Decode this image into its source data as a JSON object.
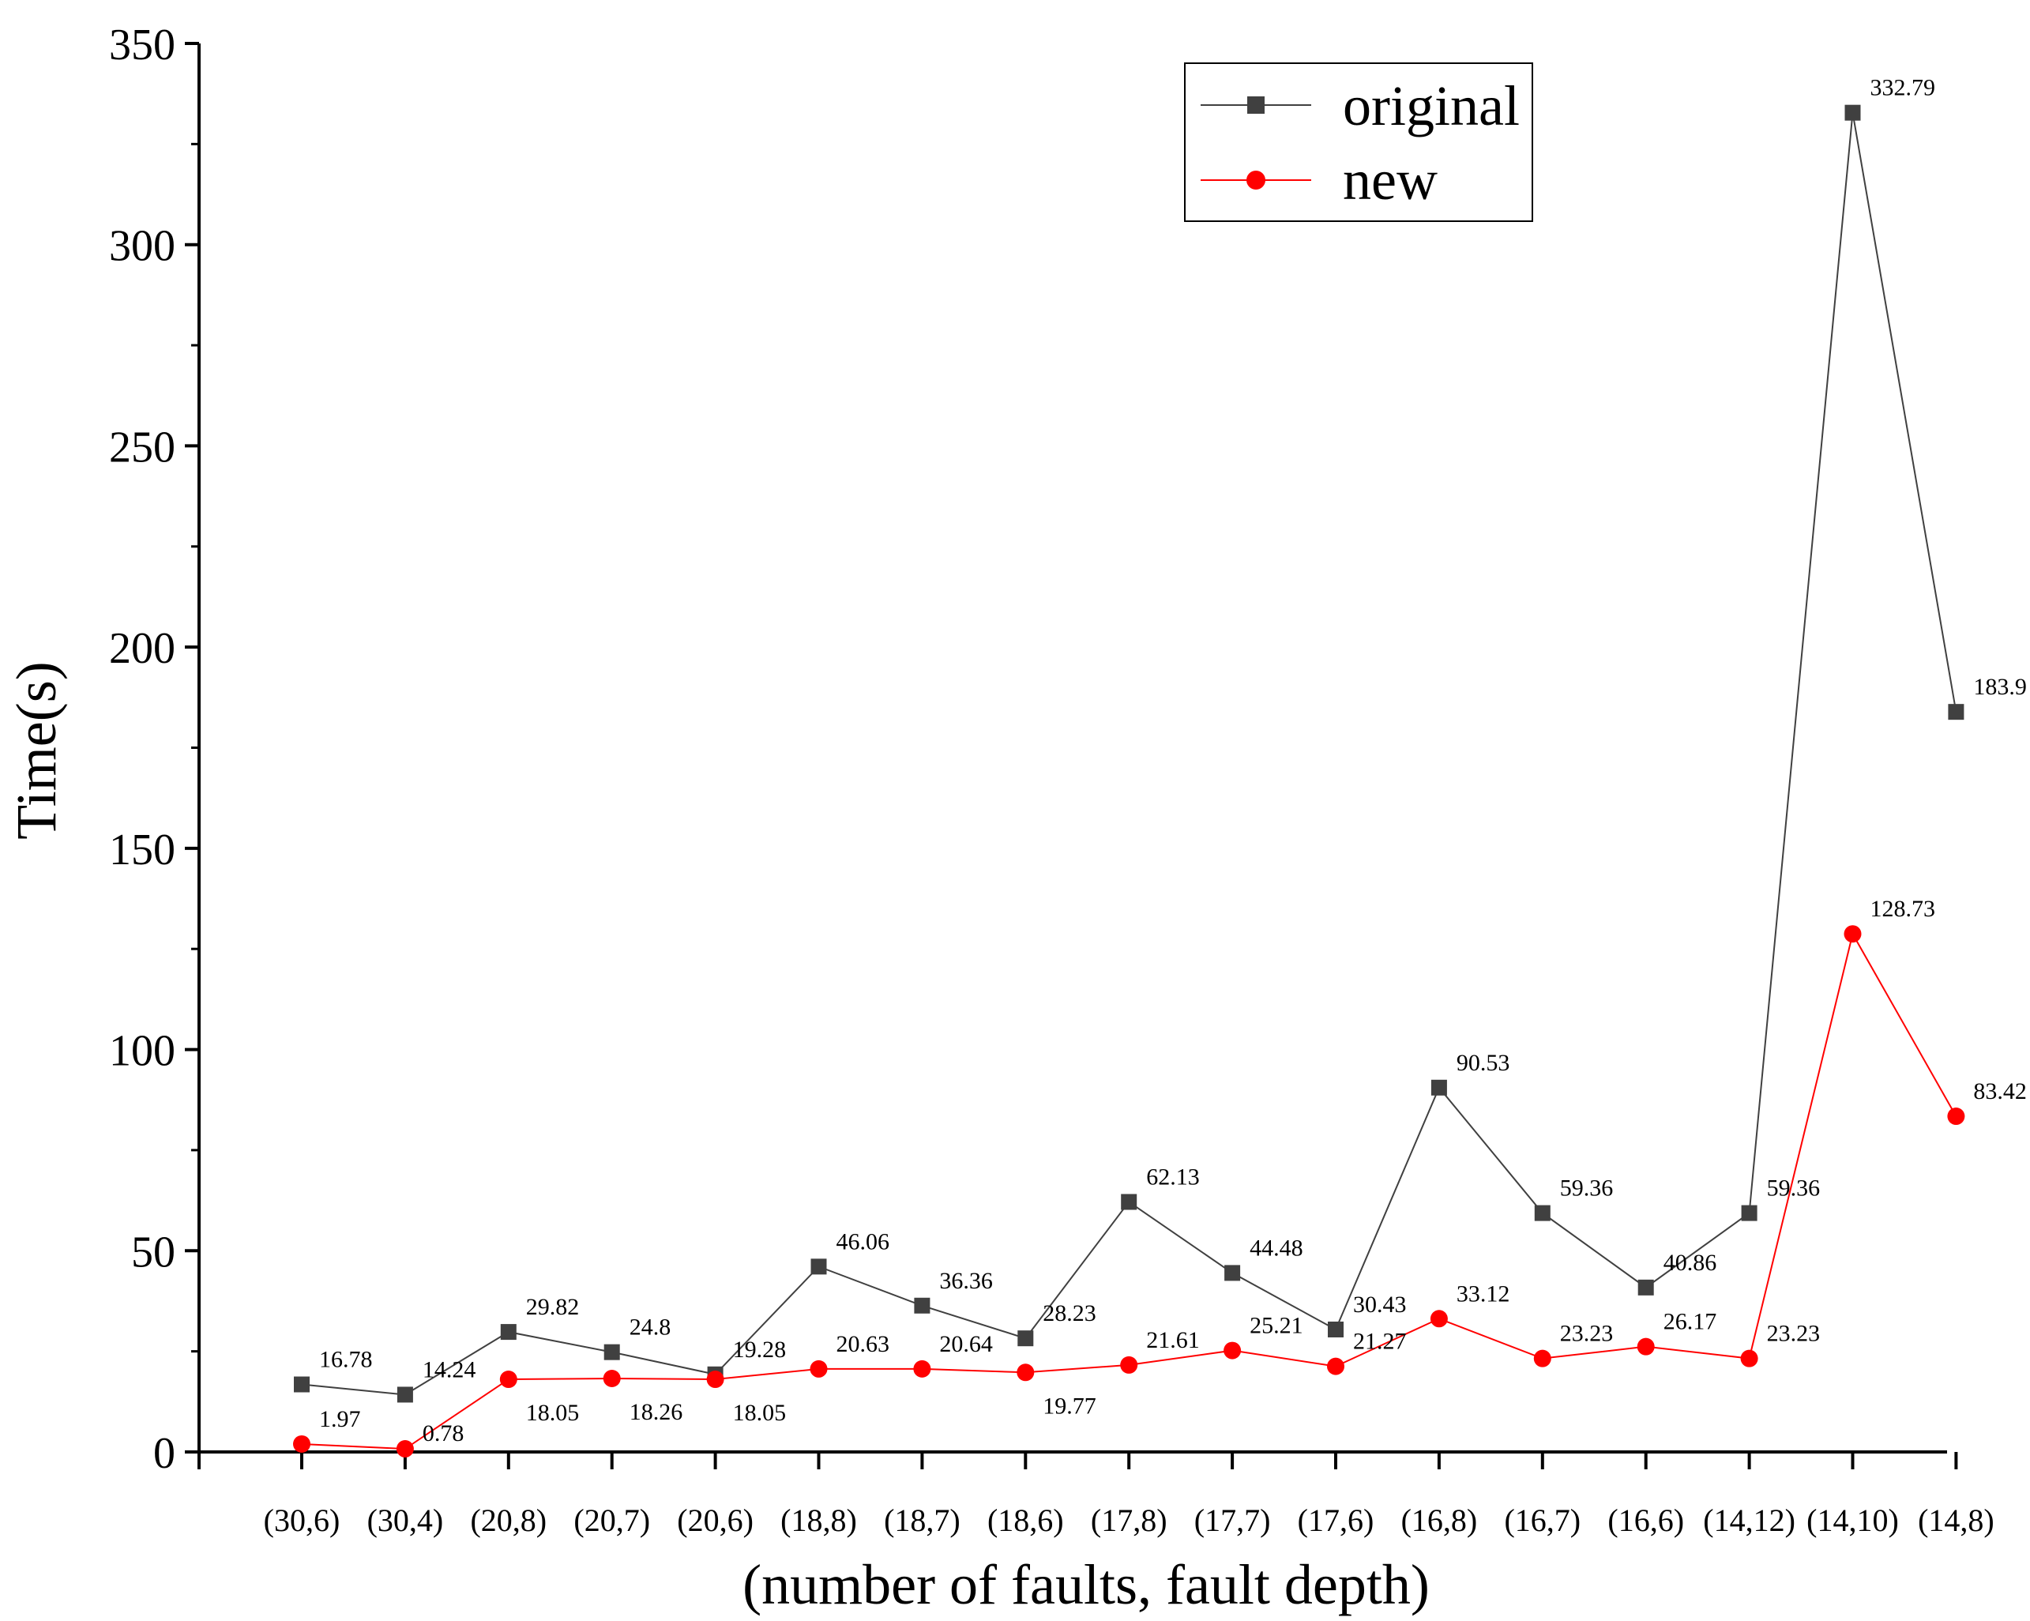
{
  "chart_data": {
    "type": "line",
    "title": "",
    "xlabel": "(number of faults, fault depth)",
    "ylabel": "Time(s)",
    "ylim": [
      0,
      350
    ],
    "yticks": [
      0,
      50,
      100,
      150,
      200,
      250,
      300,
      350
    ],
    "categories": [
      "(30,6)",
      "(30,4)",
      "(20,8)",
      "(20,7)",
      "(20,6)",
      "(18,8)",
      "(18,7)",
      "(18,6)",
      "(17,8)",
      "(17,7)",
      "(17,6)",
      "(16,8)",
      "(16,7)",
      "(16,6)",
      "(14,12)",
      "(14,10)",
      "(14,8)"
    ],
    "series": [
      {
        "name": "original",
        "color": "#404040",
        "marker": "square",
        "values": [
          16.78,
          14.24,
          29.82,
          24.8,
          19.28,
          46.06,
          36.36,
          28.23,
          62.13,
          44.48,
          30.43,
          90.53,
          59.36,
          40.86,
          59.36,
          332.79,
          183.9
        ],
        "labels": [
          "16.78",
          "14.24",
          "29.82",
          "24.8",
          "19.28",
          "46.06",
          "36.36",
          "28.23",
          "62.13",
          "44.48",
          "30.43",
          "90.53",
          "59.36",
          "40.86",
          "59.36",
          "332.79",
          "183.9"
        ]
      },
      {
        "name": "new",
        "color": "#ff0000",
        "marker": "circle",
        "values": [
          1.97,
          0.78,
          18.05,
          18.26,
          18.05,
          20.63,
          20.64,
          19.77,
          21.61,
          25.21,
          21.27,
          33.12,
          23.23,
          26.17,
          23.23,
          128.73,
          83.42
        ],
        "labels": [
          "1.97",
          "0.78",
          "18.05",
          "18.26",
          "18.05",
          "20.63",
          "20.64",
          "19.77",
          "21.61",
          "25.21",
          "21.27",
          "33.12",
          "23.23",
          "26.17",
          "23.23",
          "128.73",
          "83.42"
        ]
      }
    ],
    "legend": "top-right",
    "grid": false
  }
}
